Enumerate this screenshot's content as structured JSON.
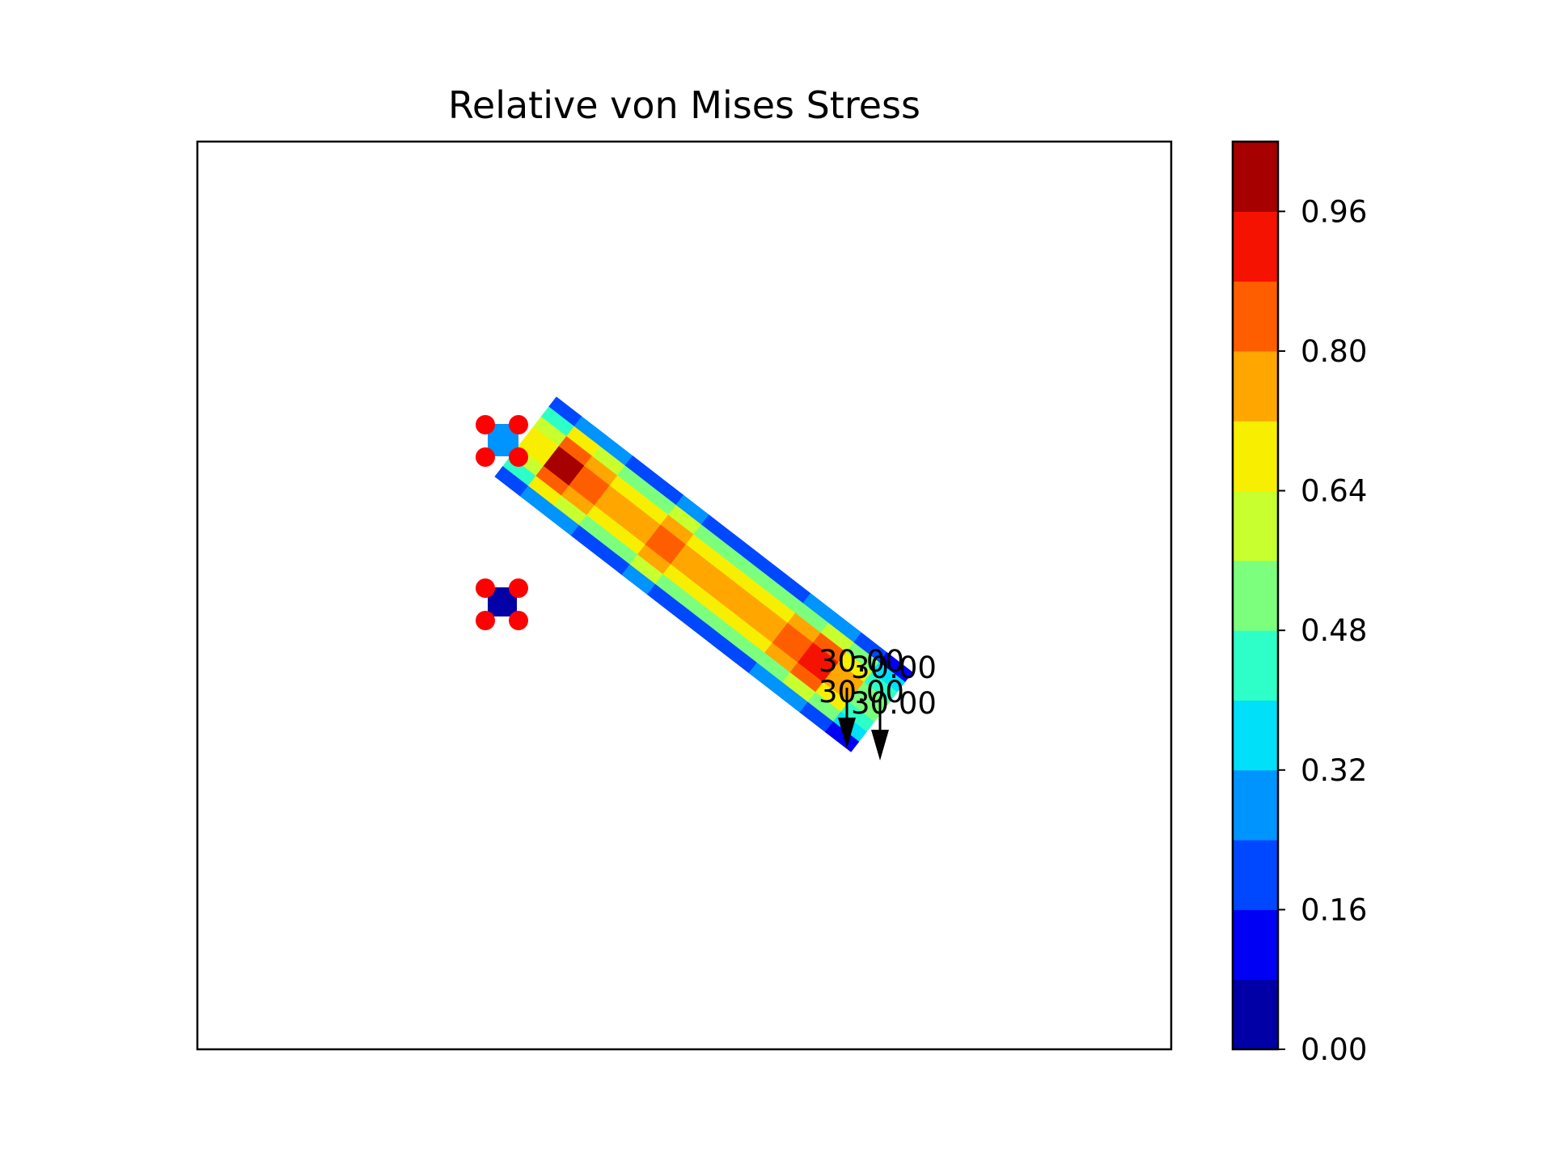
{
  "chart_data": {
    "type": "contour",
    "title": "Relative von Mises Stress",
    "xlabel": "",
    "ylabel": "",
    "axes_visible": false,
    "colormap": "jet",
    "colorbar": {
      "ticks": [
        "0.00",
        "0.16",
        "0.32",
        "0.48",
        "0.64",
        "0.80",
        "0.96"
      ],
      "range": [
        0,
        1.04
      ],
      "levels": [
        0.0,
        0.08,
        0.16,
        0.24,
        0.32,
        0.4,
        0.48,
        0.56,
        0.64,
        0.72,
        0.8,
        0.88,
        0.96,
        1.04
      ],
      "colors": [
        "#0000a6",
        "#0000f5",
        "#0048ff",
        "#0094ff",
        "#00e0f8",
        "#2effc8",
        "#7cff7c",
        "#c8ff2e",
        "#f8ef00",
        "#ffa700",
        "#ff5e00",
        "#f51200",
        "#a60000"
      ]
    },
    "stress_field": {
      "description_free": true,
      "node_grid": [
        [
          0.0,
          0.0,
          0.0,
          0.0,
          0.0,
          0.0
        ],
        [
          0.0,
          0.2,
          0.0,
          0.0,
          0.0,
          0.0
        ]
      ]
    },
    "supports": {
      "color": "#ff0000",
      "count": 8
    },
    "loads": [
      {
        "label": "30.00"
      },
      {
        "label": "30.00"
      },
      {
        "label": "30.00"
      },
      {
        "label": "30.00"
      }
    ]
  }
}
